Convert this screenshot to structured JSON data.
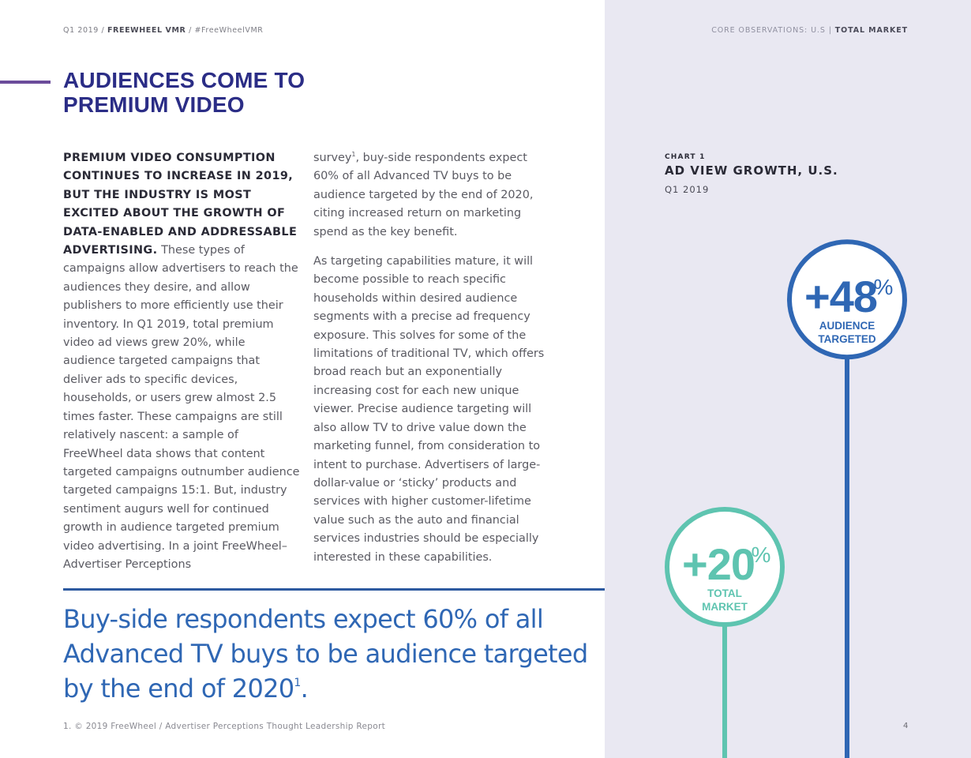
{
  "header": {
    "left_period": "Q1 2019",
    "left_report": "FREEWHEEL VMR",
    "left_hashtag": "#FreeWheelVMR",
    "right_section": "CORE OBSERVATIONS: U.S",
    "right_sub": "TOTAL MARKET"
  },
  "title": {
    "line1": "AUDIENCES COME TO",
    "line2": "PREMIUM VIDEO"
  },
  "body": {
    "col1_lead": "PREMIUM VIDEO CONSUMPTION CONTINUES TO INCREASE IN 2019, BUT THE INDUSTRY IS MOST EXCITED ABOUT THE GROWTH OF DATA-ENABLED AND ADDRESSABLE ADVERTISING.",
    "col1_text": " These types of campaigns allow advertisers to reach the audiences they desire, and allow publishers to more efficiently use their inventory. In Q1 2019, total premium video ad views grew 20%, while audience targeted campaigns that deliver ads to specific devices, households, or users grew almost 2.5 times faster. These campaigns are still relatively nascent: a sample of FreeWheel data shows that content targeted campaigns outnumber audience targeted campaigns 15:1. But, industry sentiment augurs well for continued growth in audience targeted premium video advertising. In a joint FreeWheel–Advertiser Perceptions",
    "col2_p1_start": "survey",
    "col2_p1_sup": "1",
    "col2_p1_rest": ", buy-side respondents expect 60% of all Advanced TV buys to be audience targeted by the end of 2020, citing increased return on marketing spend as the key benefit.",
    "col2_p2": "As targeting capabilities mature, it will become possible to reach specific households within desired audience segments with a precise ad frequency exposure. This solves for some of the limitations of traditional TV, which offers broad reach but an exponentially increasing cost for each new unique viewer. Precise audience targeting will also allow TV to drive value down the marketing funnel, from consideration to intent to purchase. Advertisers of large-dollar-value or ‘sticky’ products and services with higher customer-lifetime value such as the auto and financial services industries should be especially interested in these capabilities."
  },
  "pullquote": {
    "text": "Buy-side respondents expect 60% of all Advanced TV buys to be audience targeted by the end of 2020",
    "sup": "1",
    "end": "."
  },
  "footnote": "1. © 2019 FreeWheel / Advertiser Perceptions Thought Leadership Report",
  "page_number": "4",
  "colors": {
    "title": "#2b2d86",
    "accent_rule": "#6b4c9a",
    "quote": "#2f67b4",
    "panel": "#e9e8f2",
    "audience": "#2f67b4",
    "total": "#5ec4b0"
  },
  "chart_data": {
    "type": "bar",
    "label": "CHART 1",
    "title": "AD VIEW GROWTH, U.S.",
    "subtitle": "Q1 2019",
    "unit": "%",
    "series": [
      {
        "name": "AUDIENCE TARGETED",
        "line1": "AUDIENCE",
        "line2": "TARGETED",
        "value": 48,
        "display": "+48",
        "color": "#2f67b4"
      },
      {
        "name": "TOTAL MARKET",
        "line1": "TOTAL",
        "line2": "MARKET",
        "value": 20,
        "display": "+20",
        "color": "#5ec4b0"
      }
    ]
  }
}
